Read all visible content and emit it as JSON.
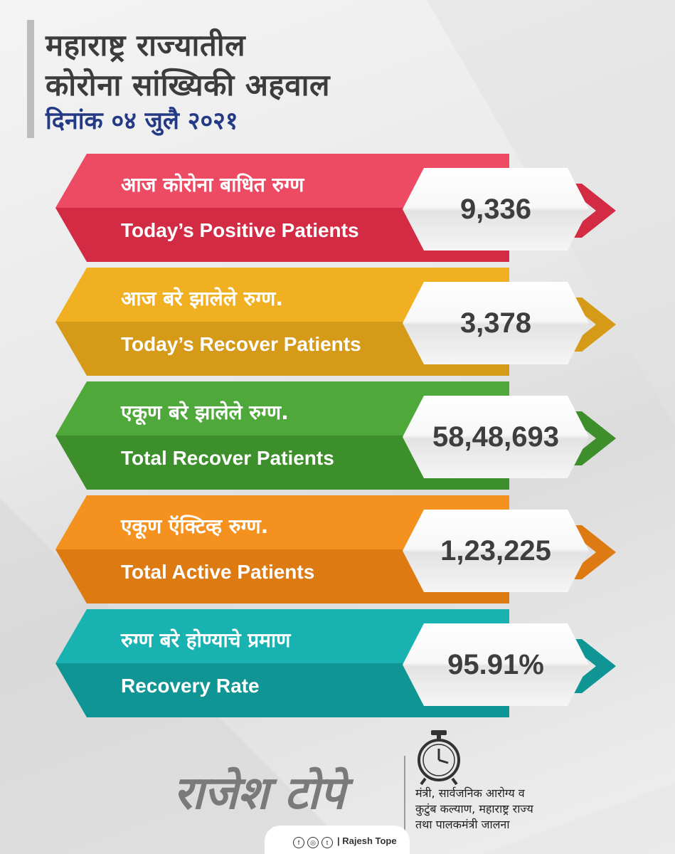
{
  "header": {
    "title_line1": "महाराष्ट्र राज्यातील",
    "title_line2": "कोरोना सांख्यिकी अहवाल",
    "date": "दिनांक ०४ जुलै २०२१"
  },
  "stats": [
    {
      "mr": "आज कोरोना बाधित रुग्ण",
      "en": "Today’s Positive Patients",
      "value": "9,336",
      "color_top": "#ec4b63",
      "color_bottom": "#d42b45"
    },
    {
      "mr": "आज बरे झालेले रुग्ण.",
      "en": "Today’s Recover Patients",
      "value": "3,378",
      "color_top": "#f0b021",
      "color_bottom": "#d59a17"
    },
    {
      "mr": "एकूण बरे झालेले रुग्ण.",
      "en": "Total Recover Patients",
      "value": "58,48,693",
      "color_top": "#4ea93a",
      "color_bottom": "#3c8f2a"
    },
    {
      "mr": "एकूण ऍक्टिव्ह रुग्ण.",
      "en": "Total Active Patients",
      "value": "1,23,225",
      "color_top": "#f4911f",
      "color_bottom": "#dd7a12"
    },
    {
      "mr": "रुग्ण बरे होण्याचे प्रमाण",
      "en": "Recovery Rate",
      "value": "95.91%",
      "color_top": "#18b2b0",
      "color_bottom": "#0f9594"
    }
  ],
  "footer": {
    "signature": "राजेश टोपे",
    "minister_line1": "मंत्री, सार्वजनिक आरोग्य व",
    "minister_line2": "कुटुंब कल्याण, महाराष्ट्र राज्य",
    "minister_line3": "तथा पालकमंत्री जालना",
    "social_handle": "| Rajesh Tope",
    "social_icons": [
      "facebook-icon",
      "instagram-icon",
      "twitter-icon"
    ]
  }
}
